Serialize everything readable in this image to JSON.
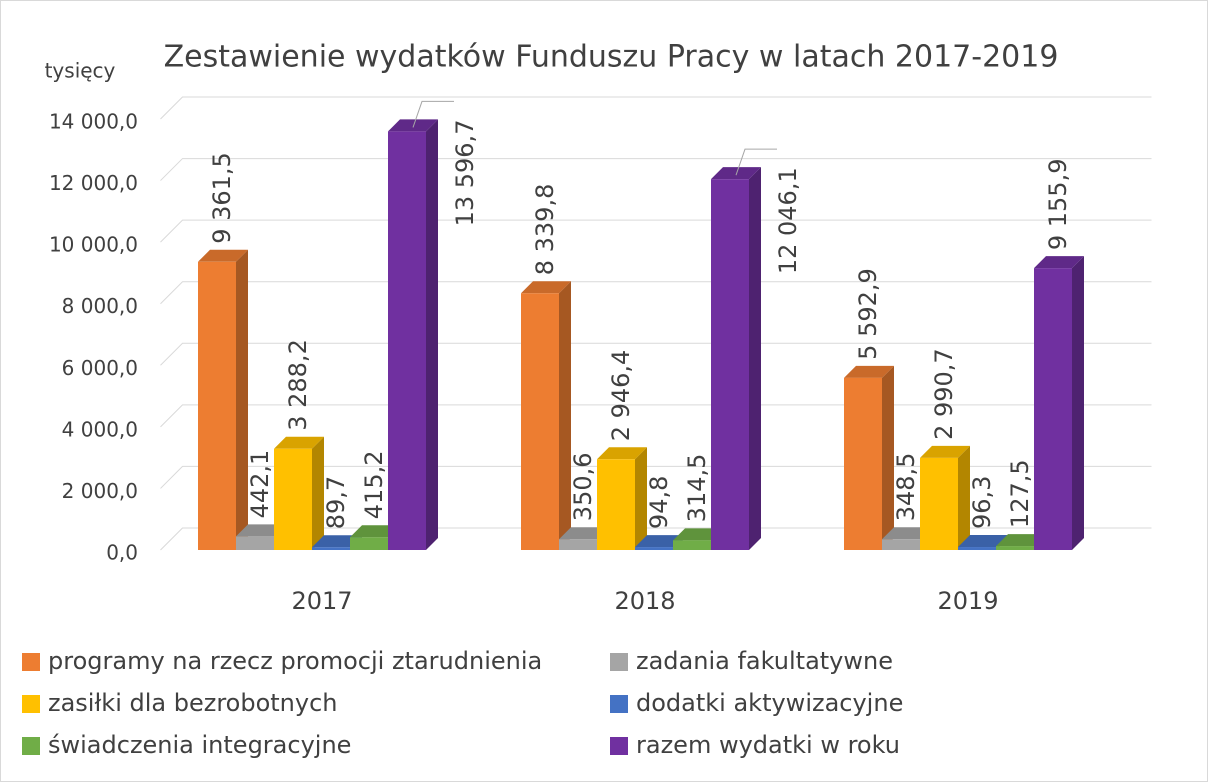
{
  "chart_data": {
    "type": "bar3d",
    "title": "Zestawienie wydatków Funduszu Pracy w latach 2017-2019",
    "ylabel": "tysięcy",
    "categories": [
      "2017",
      "2018",
      "2019"
    ],
    "series": [
      {
        "name": "programy na rzecz promocji ztarudnienia",
        "color": "#ED7D31",
        "values": [
          9361.5,
          8339.8,
          5592.9
        ],
        "value_labels": [
          "9 361,5",
          "8 339,8",
          "5 592,9"
        ]
      },
      {
        "name": "zadania fakultatywne",
        "color": "#A5A5A5",
        "values": [
          442.1,
          350.6,
          348.5
        ],
        "value_labels": [
          "442,1",
          "350,6",
          "348,5"
        ]
      },
      {
        "name": "zasiłki dla bezrobotnych",
        "color": "#FFC000",
        "values": [
          3288.2,
          2946.4,
          2990.7
        ],
        "value_labels": [
          "3 288,2",
          "2 946,4",
          "2 990,7"
        ]
      },
      {
        "name": "dodatki aktywizacyjne",
        "color": "#4472C4",
        "values": [
          89.7,
          94.8,
          96.3
        ],
        "value_labels": [
          "89,7",
          "94,8",
          "96,3"
        ]
      },
      {
        "name": "świadczenia integracyjne",
        "color": "#70AD47",
        "values": [
          415.2,
          314.5,
          127.5
        ],
        "value_labels": [
          "415,2",
          "314,5",
          "127,5"
        ]
      },
      {
        "name": "razem wydatki w roku",
        "color": "#7030A0",
        "values": [
          13596.7,
          12046.1,
          9155.9
        ],
        "value_labels": [
          "13 596,7",
          "12 046,1",
          "9 155,9"
        ]
      }
    ],
    "ylim": [
      0,
      14000
    ],
    "yticks": [
      {
        "value": 0,
        "label": "0,0"
      },
      {
        "value": 2000,
        "label": "2 000,0"
      },
      {
        "value": 4000,
        "label": "4 000,0"
      },
      {
        "value": 6000,
        "label": "6 000,0"
      },
      {
        "value": 8000,
        "label": "8 000,0"
      },
      {
        "value": 10000,
        "label": "10 000,0"
      },
      {
        "value": 12000,
        "label": "12 000,0"
      },
      {
        "value": 14000,
        "label": "14 000,0"
      }
    ],
    "grid": true,
    "legend": "bottom"
  }
}
